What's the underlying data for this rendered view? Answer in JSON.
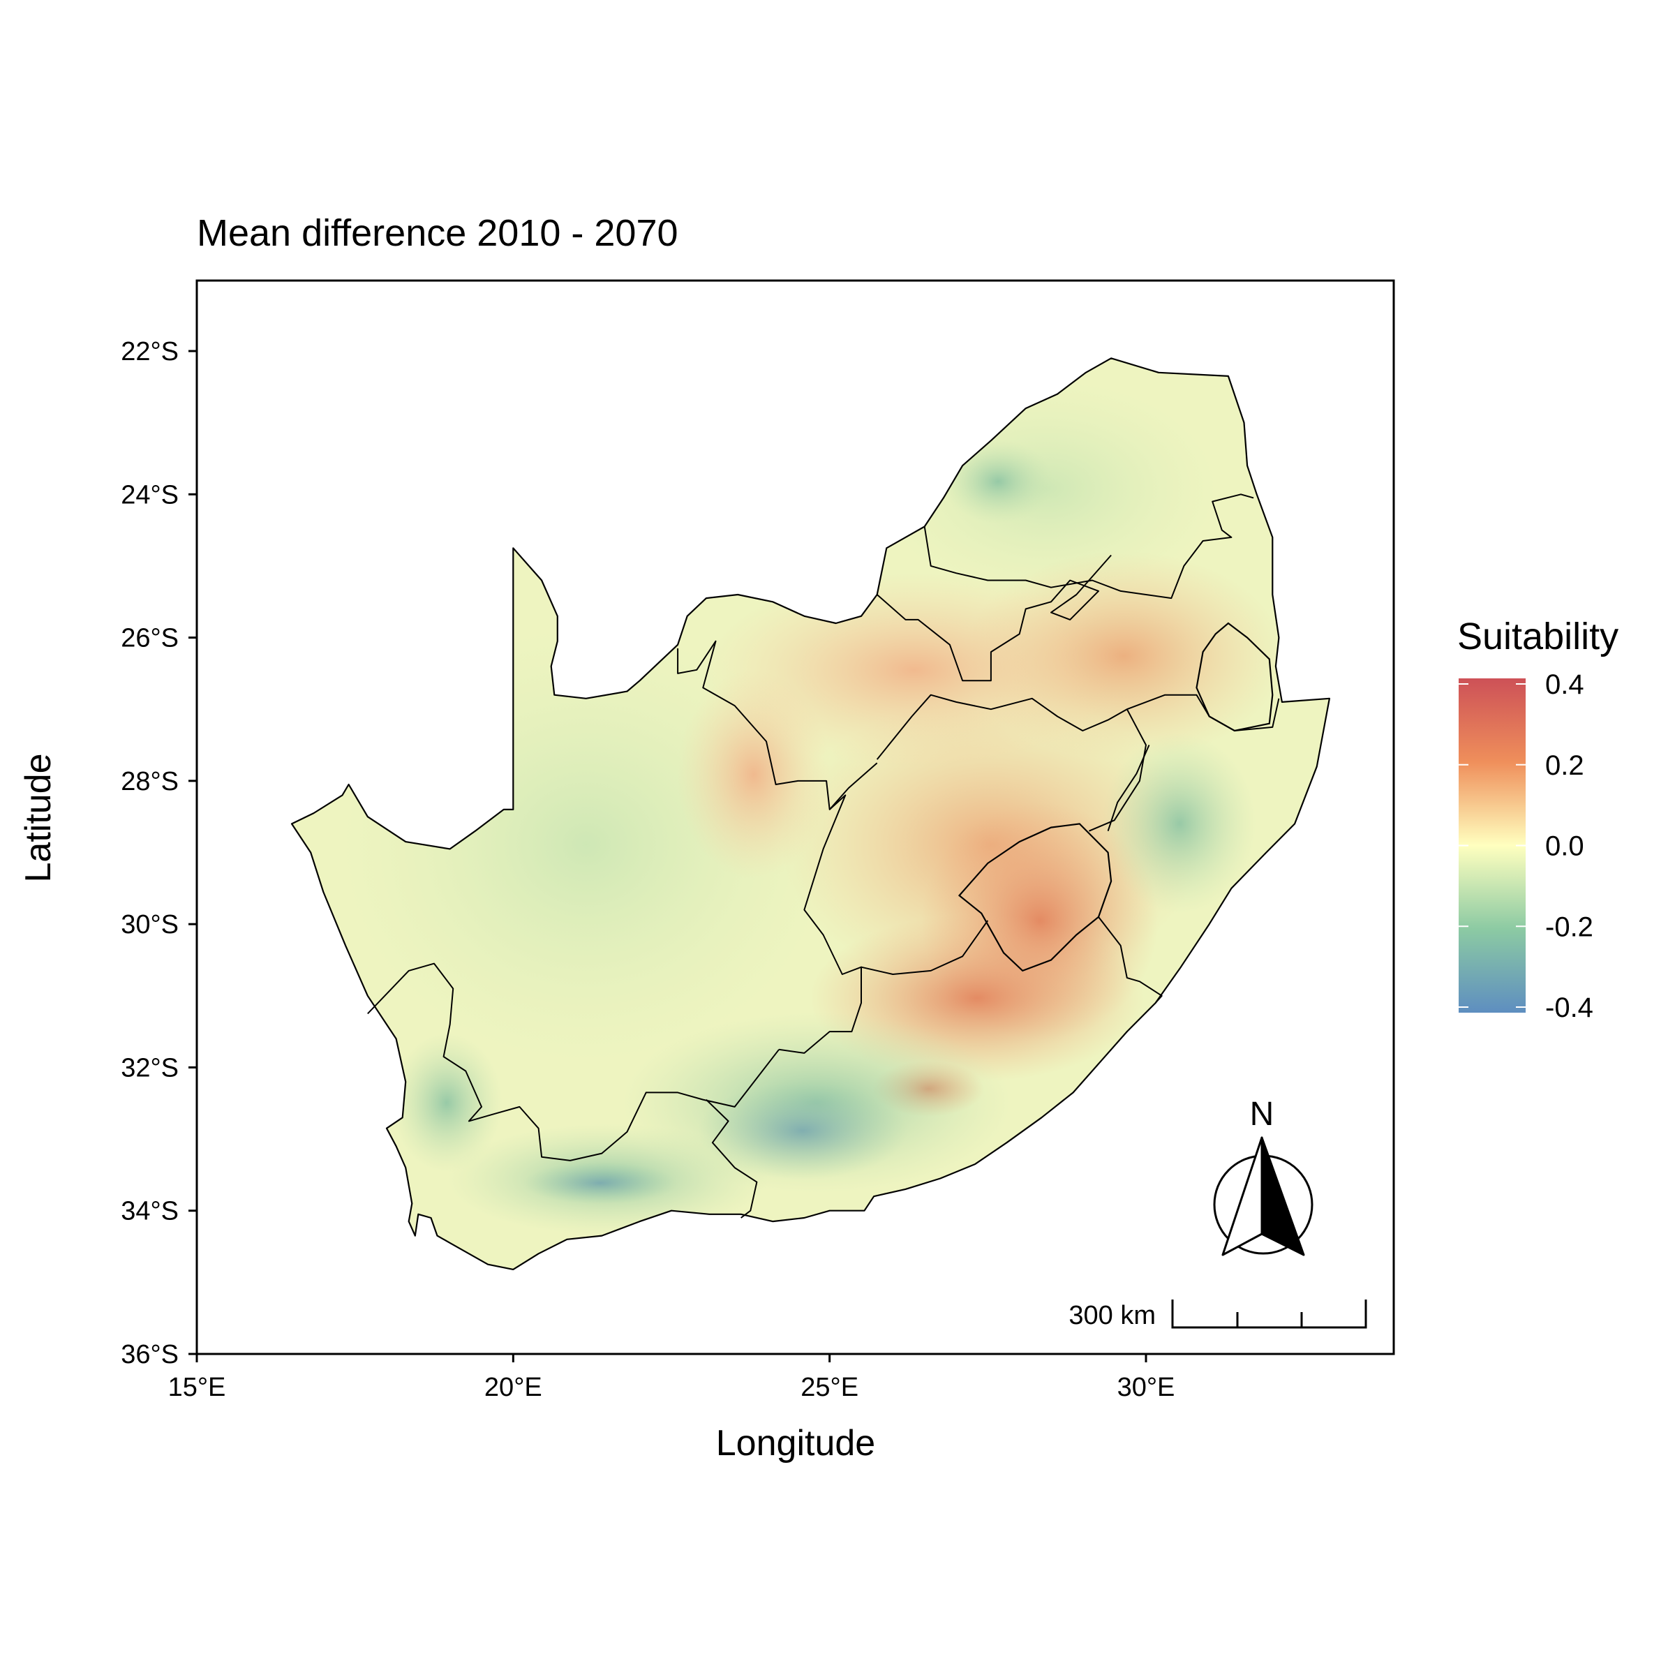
{
  "map": {
    "title": "Mean difference 2010 - 2070",
    "xlabel": "Longitude",
    "ylabel": "Latitude",
    "extent": {
      "lon": [
        15,
        34
      ],
      "lat": [
        -36,
        -21
      ]
    },
    "x_ticks": [
      {
        "value": 15,
        "label": "15°E"
      },
      {
        "value": 20,
        "label": "20°E"
      },
      {
        "value": 25,
        "label": "25°E"
      },
      {
        "value": 30,
        "label": "30°E"
      }
    ],
    "y_ticks": [
      {
        "value": -22,
        "label": "22°S"
      },
      {
        "value": -24,
        "label": "24°S"
      },
      {
        "value": -26,
        "label": "26°S"
      },
      {
        "value": -28,
        "label": "28°S"
      },
      {
        "value": -30,
        "label": "30°S"
      },
      {
        "value": -32,
        "label": "32°S"
      },
      {
        "value": -34,
        "label": "34°S"
      },
      {
        "value": -36,
        "label": "36°S"
      }
    ],
    "legend": {
      "title": "Suitability",
      "range": [
        -0.4,
        0.4
      ],
      "ticks": [
        {
          "value": 0.4,
          "label": "0.4"
        },
        {
          "value": 0.2,
          "label": "0.2"
        },
        {
          "value": 0.0,
          "label": "0.0"
        },
        {
          "value": -0.2,
          "label": "-0.2"
        },
        {
          "value": -0.4,
          "label": "-0.4"
        }
      ],
      "stops": [
        {
          "value": -0.4,
          "color": "#5e8ec0"
        },
        {
          "value": -0.2,
          "color": "#8ccaa3"
        },
        {
          "value": 0.0,
          "color": "#ffffbf"
        },
        {
          "value": 0.2,
          "color": "#ef8f5b"
        },
        {
          "value": 0.4,
          "color": "#cd5157"
        }
      ]
    },
    "north_arrow_label": "N",
    "scale_bar_label": "300 km",
    "background_color": "#f0f4be"
  }
}
